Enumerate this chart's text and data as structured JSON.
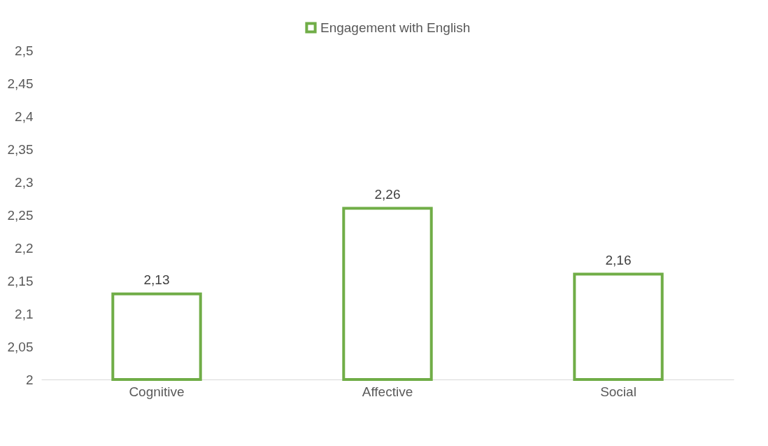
{
  "chart_data": {
    "type": "bar",
    "categories": [
      "Cognitive",
      "Affective",
      "Social"
    ],
    "series": [
      {
        "name": "Engagement with English",
        "color": "#70ad47",
        "values": [
          2.13,
          2.26,
          2.16
        ]
      }
    ],
    "value_labels": [
      "2,13",
      "2,26",
      "2,16"
    ],
    "ylim": [
      2,
      2.5
    ],
    "yticks": [
      2,
      {
        "value": 2.05,
        "label": "2,05"
      },
      {
        "value": 2.1,
        "label": "2,1"
      },
      {
        "value": 2.15,
        "label": "2,15"
      },
      {
        "value": 2.2,
        "label": "2,2"
      },
      {
        "value": 2.25,
        "label": "2,25"
      },
      {
        "value": 2.3,
        "label": "2,3"
      },
      {
        "value": 2.35,
        "label": "2,35"
      },
      {
        "value": 2.4,
        "label": "2,4"
      },
      {
        "value": 2.45,
        "label": "2,45"
      },
      {
        "value": 2.5,
        "label": "2,5"
      }
    ],
    "grid": false,
    "legend": "top"
  }
}
